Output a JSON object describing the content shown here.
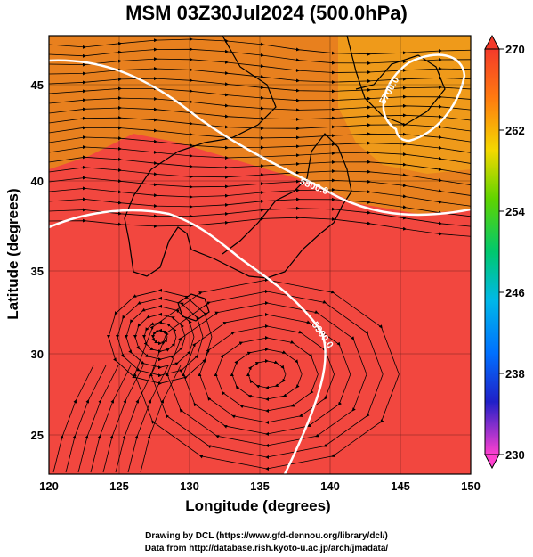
{
  "title": "MSM 03Z30Jul2024 (500.0hPa)",
  "xaxis": {
    "label": "Longitude (degrees)",
    "ticks": [
      "120",
      "125",
      "130",
      "135",
      "140",
      "145",
      "150"
    ]
  },
  "yaxis": {
    "label": "Latitude  (degrees)",
    "ticks": [
      "25",
      "30",
      "35",
      "40",
      "45"
    ]
  },
  "colorbar": {
    "ticks": [
      "270",
      "262",
      "254",
      "246",
      "238",
      "230"
    ]
  },
  "contour_labels": [
    "5700.0",
    "5800.0",
    "5900.0"
  ],
  "credits": {
    "line1": "Drawing by DCL (https://www.gfd-dennou.org/library/dcl/)",
    "line2": "Data from http://database.rish.kyoto-u.ac.jp/arch/jmadata/"
  },
  "colors": {
    "warm_field": "#f2473f",
    "cool_field": "#e88a1f",
    "contour": "#ffffff",
    "coastline": "#000000"
  }
}
